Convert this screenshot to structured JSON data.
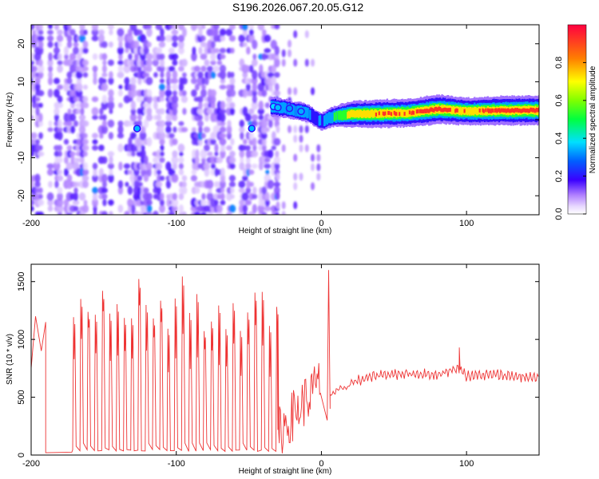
{
  "title": "S196.2026.067.20.05.G12",
  "chart_data": [
    {
      "type": "heatmap",
      "name": "spectrogram",
      "xlabel": "Height of straight line (km)",
      "ylabel": "Frequency (Hz)",
      "xlim": [
        -200,
        150
      ],
      "ylim": [
        -25,
        25
      ],
      "xticks": [
        -200,
        -100,
        0,
        100
      ],
      "yticks": [
        -20,
        -10,
        0,
        10,
        20
      ],
      "colorbar": {
        "label": "Normalized spectral amplitude",
        "range": [
          0.0,
          1.0
        ],
        "ticks": [
          0.0,
          0.2,
          0.4,
          0.6,
          0.8
        ],
        "tick_labels": [
          "0.0",
          "0.2",
          "0.4",
          "0.6",
          "0.8"
        ]
      },
      "ridge": {
        "x": [
          -35,
          -30,
          -25,
          -20,
          -15,
          -10,
          -5,
          0,
          5,
          10,
          20,
          40,
          60,
          80,
          100,
          120,
          150
        ],
        "freq_hz": [
          3.5,
          3.2,
          3.0,
          2.5,
          2.2,
          1.8,
          0.5,
          -0.5,
          0.5,
          1.0,
          1.5,
          1.6,
          1.8,
          2.8,
          2.2,
          2.4,
          2.5
        ],
        "amplitude": [
          0.35,
          0.3,
          0.3,
          0.25,
          0.3,
          0.25,
          0.2,
          0.25,
          0.35,
          0.45,
          0.75,
          0.85,
          0.85,
          0.95,
          0.8,
          0.9,
          0.95
        ]
      },
      "noise_region_x": [
        -200,
        -30
      ]
    },
    {
      "type": "line",
      "name": "snr",
      "xlabel": "Height of straight line (km)",
      "ylabel": "SNR (10 * v/v)",
      "xlim": [
        -200,
        150
      ],
      "ylim": [
        0,
        1650
      ],
      "xticks": [
        -200,
        -100,
        0,
        100
      ],
      "yticks": [
        0,
        500,
        1000,
        1500
      ],
      "color": "#ee3333",
      "series": [
        {
          "name": "SNR",
          "segments": [
            {
              "x": [
                -200,
                -197,
                -193,
                -190
              ],
              "y": [
                750,
                1200,
                900,
                1150
              ]
            },
            {
              "x": [
                -190,
                -172
              ],
              "y": [
                20,
                20
              ],
              "note": "low floor"
            },
            {
              "x": [
                -172,
                -30
              ],
              "oscillating_min": 30,
              "oscillating_max": [
                1250,
                1400,
                1350,
                1300,
                1450,
                1400,
                1380,
                1420,
                1350,
                1600,
                1450,
                1380,
                1500,
                1450,
                1400,
                1550
              ],
              "period_km": 5
            },
            {
              "x": [
                -30,
                0
              ],
              "y_range": [
                100,
                900
              ],
              "note": "noisy rise"
            },
            {
              "x": [
                5
              ],
              "y": [
                1600
              ]
            },
            {
              "x": [
                0,
                20,
                40,
                60,
                80,
                95,
                100,
                120,
                150
              ],
              "y": [
                500,
                620,
                690,
                700,
                690,
                750,
                680,
                690,
                660
              ]
            }
          ]
        }
      ]
    }
  ]
}
